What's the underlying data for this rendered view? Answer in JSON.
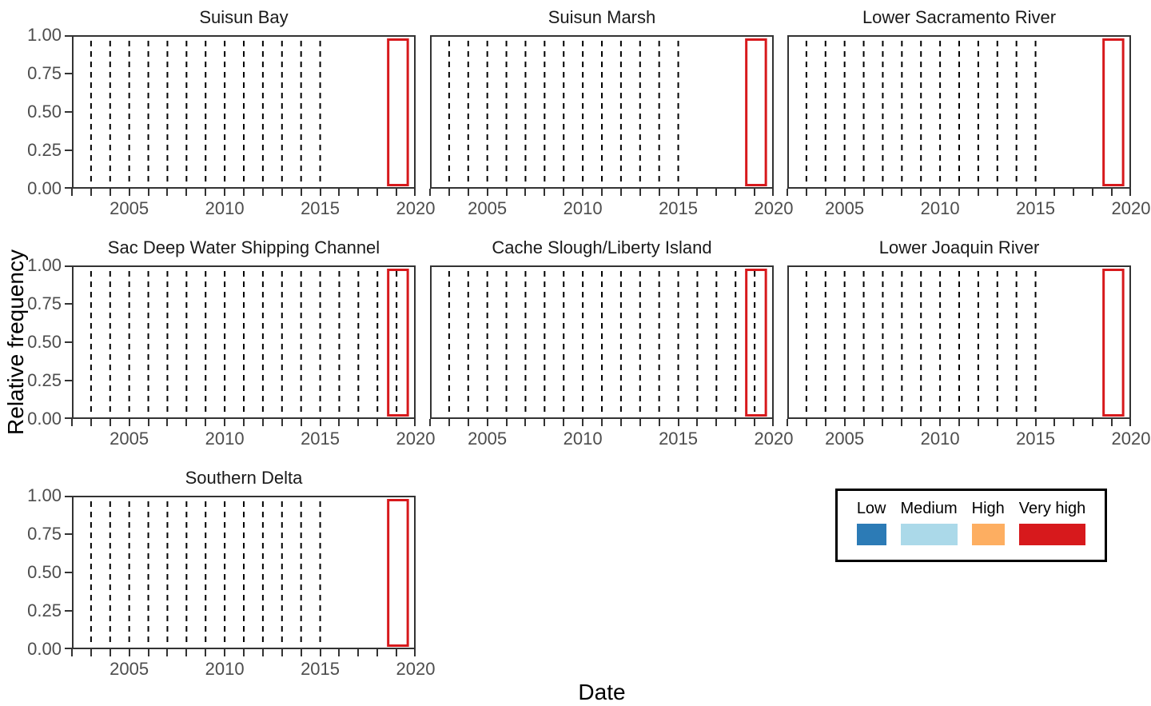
{
  "chart_data": {
    "type": "bar",
    "title": "",
    "xlabel": "Date",
    "ylabel": "Relative frequency",
    "x_axis": {
      "domain": [
        2002,
        2020
      ],
      "labeled_tick_years": [
        2005,
        2010,
        2015,
        2020
      ],
      "labeled_tick_labels": [
        "2005",
        "2010",
        "2015",
        "2020"
      ],
      "minor_tick_years": [
        2002,
        2003,
        2004,
        2005,
        2006,
        2007,
        2008,
        2009,
        2010,
        2011,
        2012,
        2013,
        2014,
        2015,
        2016,
        2017,
        2018,
        2019,
        2020
      ]
    },
    "y_axis": {
      "domain": [
        0,
        1
      ],
      "ticks": [
        {
          "value": 1.0,
          "label": "1.00"
        },
        {
          "value": 0.75,
          "label": "0.75"
        },
        {
          "value": 0.5,
          "label": "0.50"
        },
        {
          "value": 0.25,
          "label": "0.25"
        },
        {
          "value": 0.0,
          "label": "0.00"
        }
      ]
    },
    "facets": [
      {
        "title": "Suisun Bay",
        "dashed_line_years": [
          2003,
          2004,
          2005,
          2006,
          2007,
          2008,
          2009,
          2010,
          2011,
          2012,
          2013,
          2014,
          2015
        ],
        "bar": {
          "x_start": 2018.5,
          "x_end": 2019.65,
          "value": 1.0,
          "category": "Very high"
        }
      },
      {
        "title": "Suisun Marsh",
        "dashed_line_years": [
          2003,
          2004,
          2005,
          2006,
          2007,
          2008,
          2009,
          2010,
          2011,
          2012,
          2013,
          2014,
          2015
        ],
        "bar": {
          "x_start": 2018.5,
          "x_end": 2019.65,
          "value": 1.0,
          "category": "Very high"
        }
      },
      {
        "title": "Lower Sacramento River",
        "dashed_line_years": [
          2003,
          2004,
          2005,
          2006,
          2007,
          2008,
          2009,
          2010,
          2011,
          2012,
          2013,
          2014,
          2015
        ],
        "bar": {
          "x_start": 2018.5,
          "x_end": 2019.65,
          "value": 1.0,
          "category": "Very high"
        }
      },
      {
        "title": "Sac Deep Water Shipping Channel",
        "dashed_line_years": [
          2003,
          2004,
          2005,
          2006,
          2007,
          2008,
          2009,
          2010,
          2011,
          2012,
          2013,
          2014,
          2015,
          2016,
          2017,
          2018,
          2019
        ],
        "bar": {
          "x_start": 2018.5,
          "x_end": 2019.65,
          "value": 1.0,
          "category": "Very high"
        }
      },
      {
        "title": "Cache Slough/Liberty Island",
        "dashed_line_years": [
          2003,
          2004,
          2005,
          2006,
          2007,
          2008,
          2009,
          2010,
          2011,
          2012,
          2013,
          2014,
          2015,
          2016,
          2017,
          2018,
          2019
        ],
        "bar": {
          "x_start": 2018.5,
          "x_end": 2019.65,
          "value": 1.0,
          "category": "Very high"
        }
      },
      {
        "title": "Lower Joaquin River",
        "dashed_line_years": [
          2003,
          2004,
          2005,
          2006,
          2007,
          2008,
          2009,
          2010,
          2011,
          2012,
          2013,
          2014,
          2015
        ],
        "bar": {
          "x_start": 2018.5,
          "x_end": 2019.65,
          "value": 1.0,
          "category": "Very high"
        }
      },
      {
        "title": "Southern Delta",
        "dashed_line_years": [
          2003,
          2004,
          2005,
          2006,
          2007,
          2008,
          2009,
          2010,
          2011,
          2012,
          2013,
          2014,
          2015
        ],
        "bar": {
          "x_start": 2018.5,
          "x_end": 2019.65,
          "value": 1.0,
          "category": "Very high"
        }
      }
    ],
    "legend": {
      "entries": [
        {
          "label": "Low",
          "color": "#2c7bb6"
        },
        {
          "label": "Medium",
          "color": "#abd9e9"
        },
        {
          "label": "High",
          "color": "#fdae61"
        },
        {
          "label": "Very high",
          "color": "#d7191c"
        }
      ]
    },
    "styles": {
      "dashed_line_color": "#000000",
      "bar_outline_color": "#d7191c",
      "panel_border_color": "#333333",
      "tick_color": "#333333",
      "tick_label_color": "#4d4d4d",
      "facet_title_color": "#1a1a1a",
      "background_color": "#ffffff"
    }
  }
}
